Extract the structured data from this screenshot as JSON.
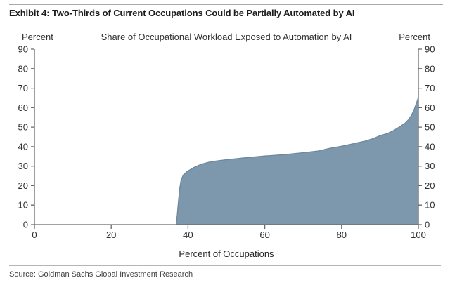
{
  "header": {
    "title": "Exhibit 4: Two-Thirds of Current Occupations Could be Partially Automated by AI"
  },
  "footer": {
    "source": "Source: Goldman Sachs Global Investment Research"
  },
  "chart_data": {
    "type": "area",
    "title": "Share of Occupational Workload Exposed to Automation by AI",
    "xlabel": "Percent of Occupations",
    "ylabel_left": "Percent",
    "ylabel_right": "Percent",
    "xlim": [
      0,
      100
    ],
    "ylim": [
      0,
      90
    ],
    "xticks": [
      0,
      20,
      40,
      60,
      80,
      100
    ],
    "yticks": [
      0,
      10,
      20,
      30,
      40,
      50,
      60,
      70,
      80,
      90
    ],
    "grid": false,
    "legend": "none",
    "fill_color": "#7d97ad",
    "edge_color": "#6d879d",
    "axis_color": "#6a6a6a",
    "tick_label_color": "#2e2e2e",
    "points": [
      [
        0,
        0
      ],
      [
        36.9,
        0
      ],
      [
        37.2,
        5
      ],
      [
        37.5,
        12
      ],
      [
        37.8,
        18
      ],
      [
        38.2,
        23
      ],
      [
        38.8,
        25.5
      ],
      [
        39.8,
        27.3
      ],
      [
        41.5,
        29.3
      ],
      [
        43.5,
        31
      ],
      [
        46,
        32.3
      ],
      [
        50,
        33.3
      ],
      [
        55,
        34.3
      ],
      [
        60,
        35.2
      ],
      [
        65,
        35.9
      ],
      [
        70,
        36.9
      ],
      [
        74,
        37.8
      ],
      [
        77,
        39.2
      ],
      [
        80,
        40.2
      ],
      [
        83,
        41.5
      ],
      [
        86,
        42.8
      ],
      [
        88,
        44
      ],
      [
        90,
        45.6
      ],
      [
        92,
        46.8
      ],
      [
        93.5,
        48.2
      ],
      [
        95,
        50
      ],
      [
        96.5,
        52
      ],
      [
        97.5,
        54
      ],
      [
        98.3,
        56.5
      ],
      [
        99,
        59.5
      ],
      [
        99.5,
        62.5
      ],
      [
        99.8,
        64
      ],
      [
        100,
        65.5
      ]
    ]
  }
}
